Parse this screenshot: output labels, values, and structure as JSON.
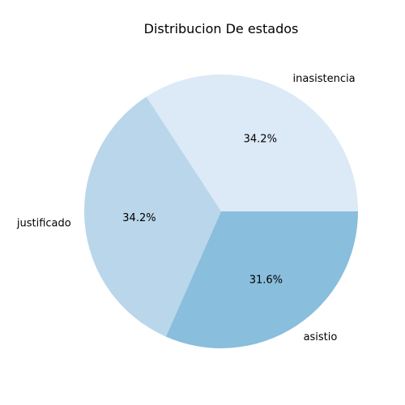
{
  "chart_data": {
    "type": "pie",
    "title": "Distribucion De estados",
    "start_angle_deg": 0,
    "direction": "counterclockwise",
    "slices": [
      {
        "label": "inasistencia",
        "value": 34.2,
        "pct_text": "34.2%",
        "color": "#dce9f6"
      },
      {
        "label": "justificado",
        "value": 34.2,
        "pct_text": "34.2%",
        "color": "#bad6ea"
      },
      {
        "label": "asistio",
        "value": 31.6,
        "pct_text": "31.6%",
        "color": "#89bedc"
      }
    ]
  }
}
